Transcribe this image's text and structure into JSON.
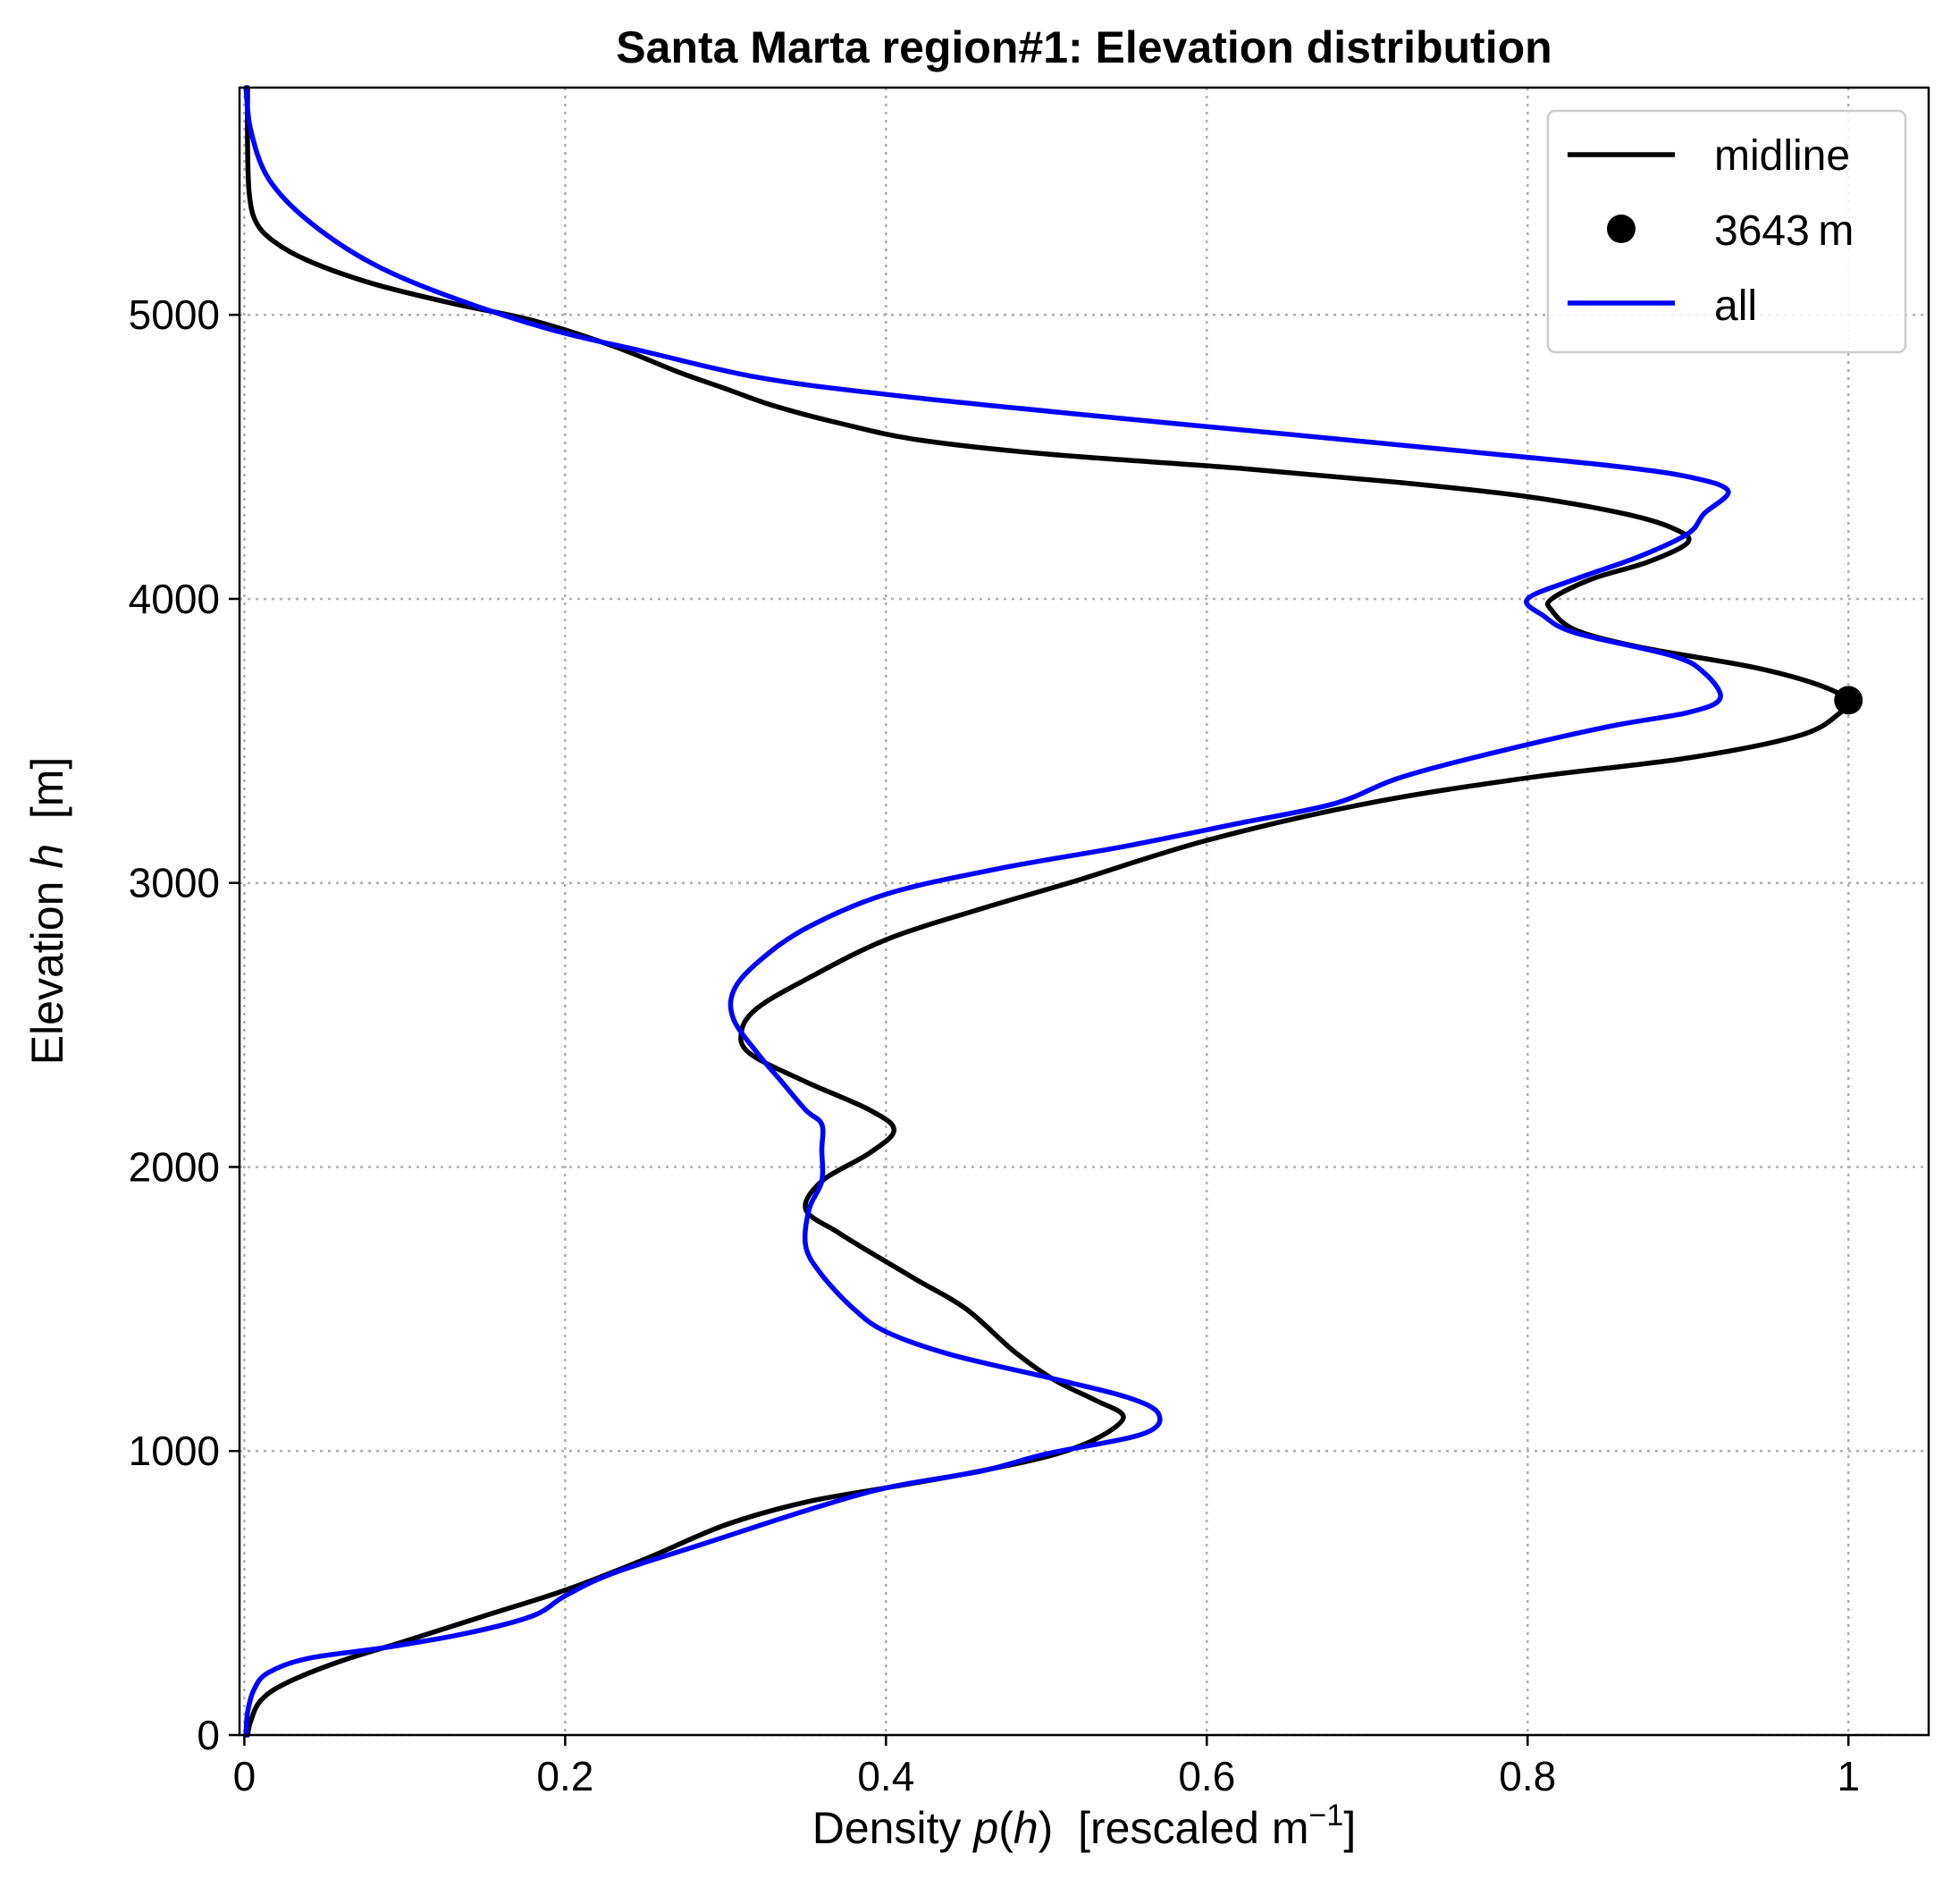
{
  "chart_data": {
    "type": "line",
    "title": "Santa Marta region#1:  Elevation distribution",
    "xlabel": "Density p(h)  [rescaled m⁻¹]",
    "xlabel_parts": {
      "prefix": "Density ",
      "func": "p",
      "arg": "h",
      "suffix": "  [rescaled m",
      "exponent": "−1",
      "close": "]"
    },
    "ylabel": "Elevation h  [m]",
    "ylabel_parts": {
      "prefix": "Elevation ",
      "var": "h",
      "suffix": "  [m]"
    },
    "xlim": [
      -0.003,
      1.05
    ],
    "ylim": [
      0,
      5800
    ],
    "xticks": [
      0,
      0.2,
      0.4,
      0.6,
      0.8,
      1
    ],
    "xtick_labels": [
      "0",
      "0.2",
      "0.4",
      "0.6",
      "0.8",
      "1"
    ],
    "yticks": [
      0,
      1000,
      2000,
      3000,
      4000,
      5000
    ],
    "ytick_labels": [
      "0",
      "1000",
      "2000",
      "3000",
      "4000",
      "5000"
    ],
    "grid": true,
    "legend_position": "top-right",
    "series": [
      {
        "name": "midline",
        "color": "#000000",
        "style": "line",
        "points": [
          [
            0.002,
            0
          ],
          [
            0.004,
            50
          ],
          [
            0.01,
            120
          ],
          [
            0.025,
            180
          ],
          [
            0.06,
            260
          ],
          [
            0.1,
            330
          ],
          [
            0.15,
            420
          ],
          [
            0.2,
            510
          ],
          [
            0.25,
            620
          ],
          [
            0.3,
            740
          ],
          [
            0.35,
            820
          ],
          [
            0.4,
            870
          ],
          [
            0.45,
            920
          ],
          [
            0.5,
            980
          ],
          [
            0.53,
            1040
          ],
          [
            0.548,
            1120
          ],
          [
            0.53,
            1180
          ],
          [
            0.505,
            1250
          ],
          [
            0.48,
            1350
          ],
          [
            0.45,
            1500
          ],
          [
            0.42,
            1600
          ],
          [
            0.39,
            1700
          ],
          [
            0.37,
            1770
          ],
          [
            0.35,
            1850
          ],
          [
            0.36,
            1950
          ],
          [
            0.39,
            2050
          ],
          [
            0.405,
            2130
          ],
          [
            0.39,
            2200
          ],
          [
            0.35,
            2300
          ],
          [
            0.315,
            2400
          ],
          [
            0.31,
            2480
          ],
          [
            0.32,
            2560
          ],
          [
            0.35,
            2660
          ],
          [
            0.4,
            2800
          ],
          [
            0.46,
            2910
          ],
          [
            0.52,
            3010
          ],
          [
            0.6,
            3150
          ],
          [
            0.7,
            3280
          ],
          [
            0.8,
            3370
          ],
          [
            0.9,
            3440
          ],
          [
            0.97,
            3520
          ],
          [
            0.995,
            3600
          ],
          [
            1.0,
            3643
          ],
          [
            0.98,
            3700
          ],
          [
            0.94,
            3760
          ],
          [
            0.87,
            3830
          ],
          [
            0.83,
            3890
          ],
          [
            0.815,
            3960
          ],
          [
            0.815,
            4000
          ],
          [
            0.84,
            4070
          ],
          [
            0.875,
            4130
          ],
          [
            0.9,
            4200
          ],
          [
            0.89,
            4250
          ],
          [
            0.86,
            4300
          ],
          [
            0.8,
            4360
          ],
          [
            0.72,
            4410
          ],
          [
            0.62,
            4460
          ],
          [
            0.5,
            4510
          ],
          [
            0.42,
            4560
          ],
          [
            0.37,
            4620
          ],
          [
            0.33,
            4680
          ],
          [
            0.3,
            4740
          ],
          [
            0.27,
            4800
          ],
          [
            0.23,
            4890
          ],
          [
            0.18,
            4980
          ],
          [
            0.13,
            5040
          ],
          [
            0.08,
            5110
          ],
          [
            0.04,
            5190
          ],
          [
            0.018,
            5260
          ],
          [
            0.007,
            5330
          ],
          [
            0.003,
            5430
          ],
          [
            0.002,
            5600
          ],
          [
            0.002,
            5800
          ]
        ]
      },
      {
        "name": "3643 m",
        "color": "#000000",
        "style": "marker",
        "points": [
          [
            1.0,
            3643
          ]
        ]
      },
      {
        "name": "all",
        "color": "#0000ff",
        "style": "line",
        "points": [
          [
            0.001,
            0
          ],
          [
            0.002,
            80
          ],
          [
            0.006,
            160
          ],
          [
            0.015,
            220
          ],
          [
            0.04,
            270
          ],
          [
            0.09,
            310
          ],
          [
            0.14,
            360
          ],
          [
            0.18,
            420
          ],
          [
            0.2,
            490
          ],
          [
            0.23,
            570
          ],
          [
            0.29,
            680
          ],
          [
            0.35,
            790
          ],
          [
            0.4,
            870
          ],
          [
            0.46,
            930
          ],
          [
            0.5,
            990
          ],
          [
            0.56,
            1060
          ],
          [
            0.57,
            1130
          ],
          [
            0.55,
            1190
          ],
          [
            0.5,
            1260
          ],
          [
            0.44,
            1340
          ],
          [
            0.4,
            1420
          ],
          [
            0.38,
            1500
          ],
          [
            0.36,
            1620
          ],
          [
            0.35,
            1720
          ],
          [
            0.352,
            1850
          ],
          [
            0.36,
            1950
          ],
          [
            0.36,
            2060
          ],
          [
            0.36,
            2150
          ],
          [
            0.35,
            2200
          ],
          [
            0.335,
            2300
          ],
          [
            0.32,
            2400
          ],
          [
            0.305,
            2520
          ],
          [
            0.305,
            2620
          ],
          [
            0.32,
            2720
          ],
          [
            0.35,
            2840
          ],
          [
            0.4,
            2960
          ],
          [
            0.47,
            3050
          ],
          [
            0.55,
            3130
          ],
          [
            0.62,
            3210
          ],
          [
            0.68,
            3280
          ],
          [
            0.72,
            3370
          ],
          [
            0.78,
            3460
          ],
          [
            0.85,
            3550
          ],
          [
            0.9,
            3600
          ],
          [
            0.92,
            3650
          ],
          [
            0.91,
            3740
          ],
          [
            0.89,
            3800
          ],
          [
            0.83,
            3880
          ],
          [
            0.81,
            3940
          ],
          [
            0.8,
            4000
          ],
          [
            0.83,
            4070
          ],
          [
            0.87,
            4150
          ],
          [
            0.9,
            4230
          ],
          [
            0.91,
            4300
          ],
          [
            0.925,
            4380
          ],
          [
            0.9,
            4430
          ],
          [
            0.85,
            4470
          ],
          [
            0.76,
            4520
          ],
          [
            0.65,
            4580
          ],
          [
            0.52,
            4650
          ],
          [
            0.4,
            4720
          ],
          [
            0.32,
            4780
          ],
          [
            0.25,
            4870
          ],
          [
            0.19,
            4950
          ],
          [
            0.13,
            5060
          ],
          [
            0.08,
            5180
          ],
          [
            0.04,
            5330
          ],
          [
            0.015,
            5480
          ],
          [
            0.004,
            5650
          ],
          [
            0.001,
            5800
          ]
        ]
      }
    ]
  }
}
